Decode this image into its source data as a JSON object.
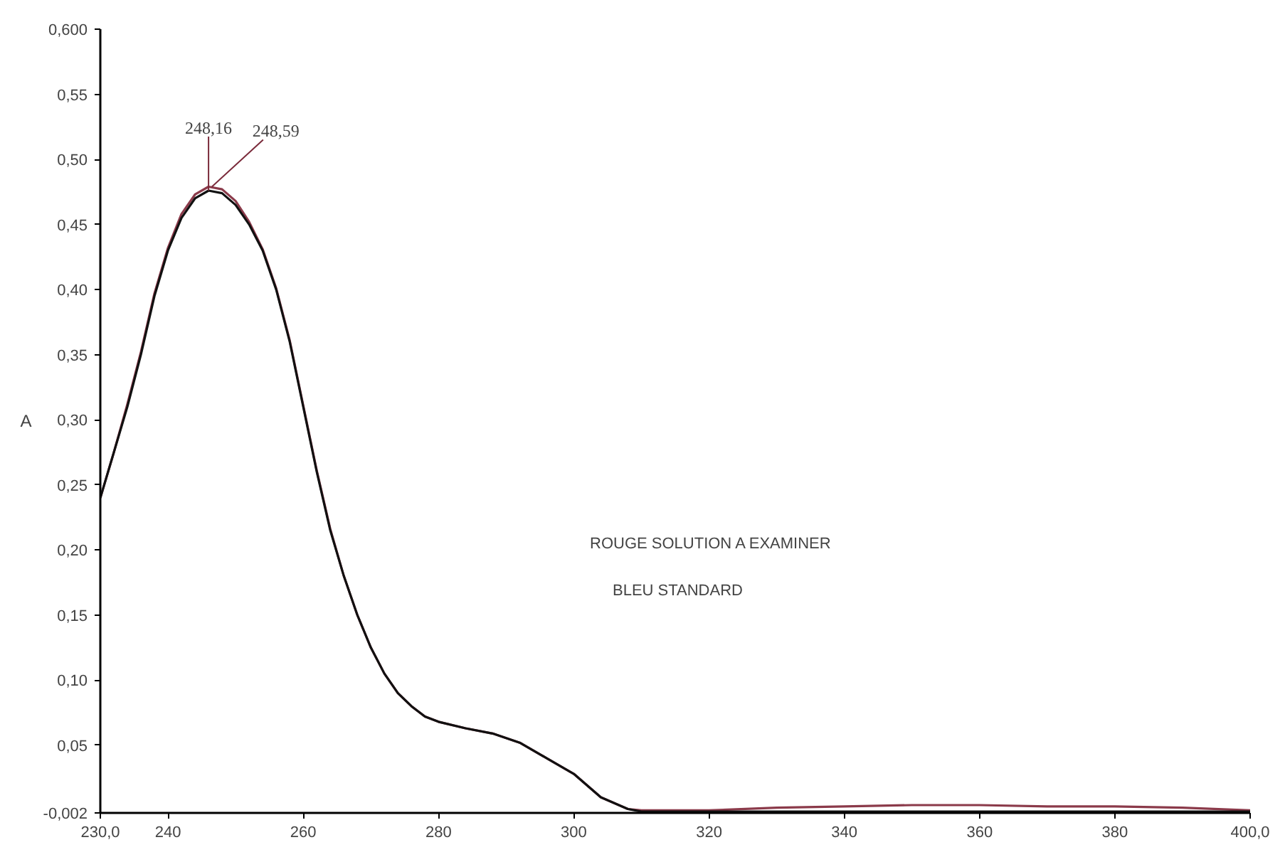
{
  "chart_data": {
    "type": "line",
    "ylabel": "A",
    "x": [
      230,
      232,
      234,
      236,
      238,
      240,
      242,
      244,
      246,
      248,
      250,
      252,
      254,
      256,
      258,
      260,
      262,
      264,
      266,
      268,
      270,
      272,
      274,
      276,
      278,
      280,
      284,
      288,
      292,
      296,
      300,
      304,
      308,
      310,
      315,
      320,
      330,
      340,
      350,
      360,
      370,
      380,
      390,
      400
    ],
    "series": [
      {
        "color": "#8b3a4a",
        "values": [
          0.24,
          0.275,
          0.312,
          0.352,
          0.397,
          0.432,
          0.458,
          0.473,
          0.479,
          0.477,
          0.468,
          0.452,
          0.431,
          0.401,
          0.361,
          0.311,
          0.261,
          0.216,
          0.18,
          0.15,
          0.125,
          0.105,
          0.09,
          0.08,
          0.072,
          0.068,
          0.063,
          0.059,
          0.052,
          0.04,
          0.028,
          0.01,
          0.001,
          0.0,
          0.0,
          0.0,
          0.002,
          0.003,
          0.004,
          0.004,
          0.003,
          0.003,
          0.002,
          0.0
        ]
      },
      {
        "color": "#111111",
        "values": [
          0.24,
          0.275,
          0.31,
          0.35,
          0.395,
          0.43,
          0.455,
          0.47,
          0.476,
          0.474,
          0.465,
          0.45,
          0.43,
          0.4,
          0.36,
          0.31,
          0.26,
          0.215,
          0.18,
          0.15,
          0.125,
          0.105,
          0.09,
          0.08,
          0.072,
          0.068,
          0.063,
          0.059,
          0.052,
          0.04,
          0.028,
          0.01,
          0.001,
          -0.001,
          -0.001,
          -0.001,
          -0.001,
          -0.001,
          -0.001,
          -0.001,
          -0.001,
          -0.001,
          -0.001,
          -0.001
        ]
      }
    ],
    "xlim": [
      230,
      400
    ],
    "ylim": [
      -0.002,
      0.6
    ],
    "xticks": [
      {
        "value": 230,
        "label": "230,0"
      },
      240,
      260,
      280,
      300,
      320,
      340,
      360,
      380,
      {
        "value": 400,
        "label": "400,0"
      }
    ],
    "yticks": [
      {
        "value": -0.002,
        "label": "-0,002"
      },
      {
        "value": 0.05,
        "label": "0,05"
      },
      {
        "value": 0.1,
        "label": "0,10"
      },
      {
        "value": 0.15,
        "label": "0,15"
      },
      {
        "value": 0.2,
        "label": "0,20"
      },
      {
        "value": 0.25,
        "label": "0,25"
      },
      {
        "value": 0.3,
        "label": "0,30"
      },
      {
        "value": 0.35,
        "label": "0,35"
      },
      {
        "value": 0.4,
        "label": "0,40"
      },
      {
        "value": 0.45,
        "label": "0,45"
      },
      {
        "value": 0.5,
        "label": "0,50"
      },
      {
        "value": 0.55,
        "label": "0,55"
      },
      {
        "value": 0.6,
        "label": "0,600"
      }
    ],
    "annotations": [
      {
        "text": "248,16",
        "x": 246,
        "y": 0.476
      },
      {
        "text": "248,59",
        "x": 246.5,
        "y": 0.479
      },
      "ROUGE SOLUTION A EXAMINER",
      "BLEU STANDARD"
    ],
    "line_style": "solid"
  }
}
